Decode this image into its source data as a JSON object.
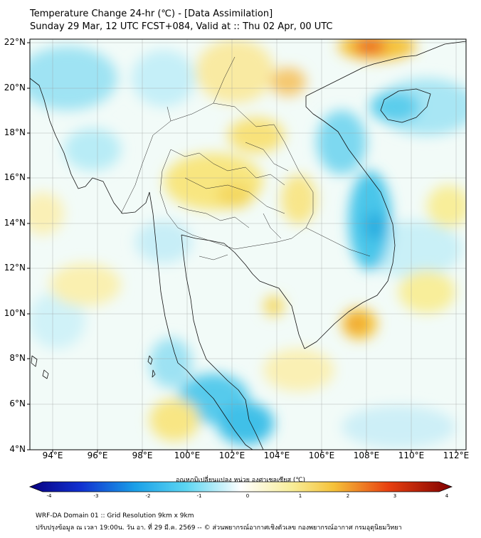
{
  "title_line1": "Temperature Change 24-hr (℃) - [Data Assimilation]",
  "title_line2": "Sunday 29 Mar, 12 UTC FCST+084, Valid at :: Thu 02 Apr, 00 UTC",
  "y_axis_labels": [
    "22°N",
    "20°N",
    "18°N",
    "16°N",
    "14°N",
    "12°N",
    "10°N",
    "8°N",
    "6°N",
    "4°N"
  ],
  "x_axis_labels": [
    "94°E",
    "96°E",
    "98°E",
    "100°E",
    "102°E",
    "104°E",
    "106°E",
    "108°E",
    "110°E",
    "112°E"
  ],
  "colorbar": {
    "title": "อุณหภูมิเปลี่ยนแปลง หน่วย องศาเซลเซียส (℃)",
    "ticks": [
      "-4",
      "-3",
      "-2",
      "-1",
      "0",
      "1",
      "2",
      "3",
      "4"
    ],
    "min": -4,
    "max": 4
  },
  "footer_line1": "WRF-DA Domain 01 :: Grid Resolution 9km x 9km",
  "footer_line2": "ปรับปรุงข้อมูล ณ เวลา 19:00น. วัน อา. ที่ 29 มี.ค. 2569 -- © ส่วนพยากรณ์อากาศเชิงตัวเลข กองพยากรณ์อากาศ กรมอุตุนิยมวิทยา",
  "colors": {
    "warm_strong": "#e82010",
    "warm": "#f5c23a",
    "warm_light": "#f8ee9a",
    "neutral": "#ffffff",
    "cool_light": "#c5eff8",
    "cool": "#5cd0ec",
    "cool_strong": "#2ab4e4"
  }
}
